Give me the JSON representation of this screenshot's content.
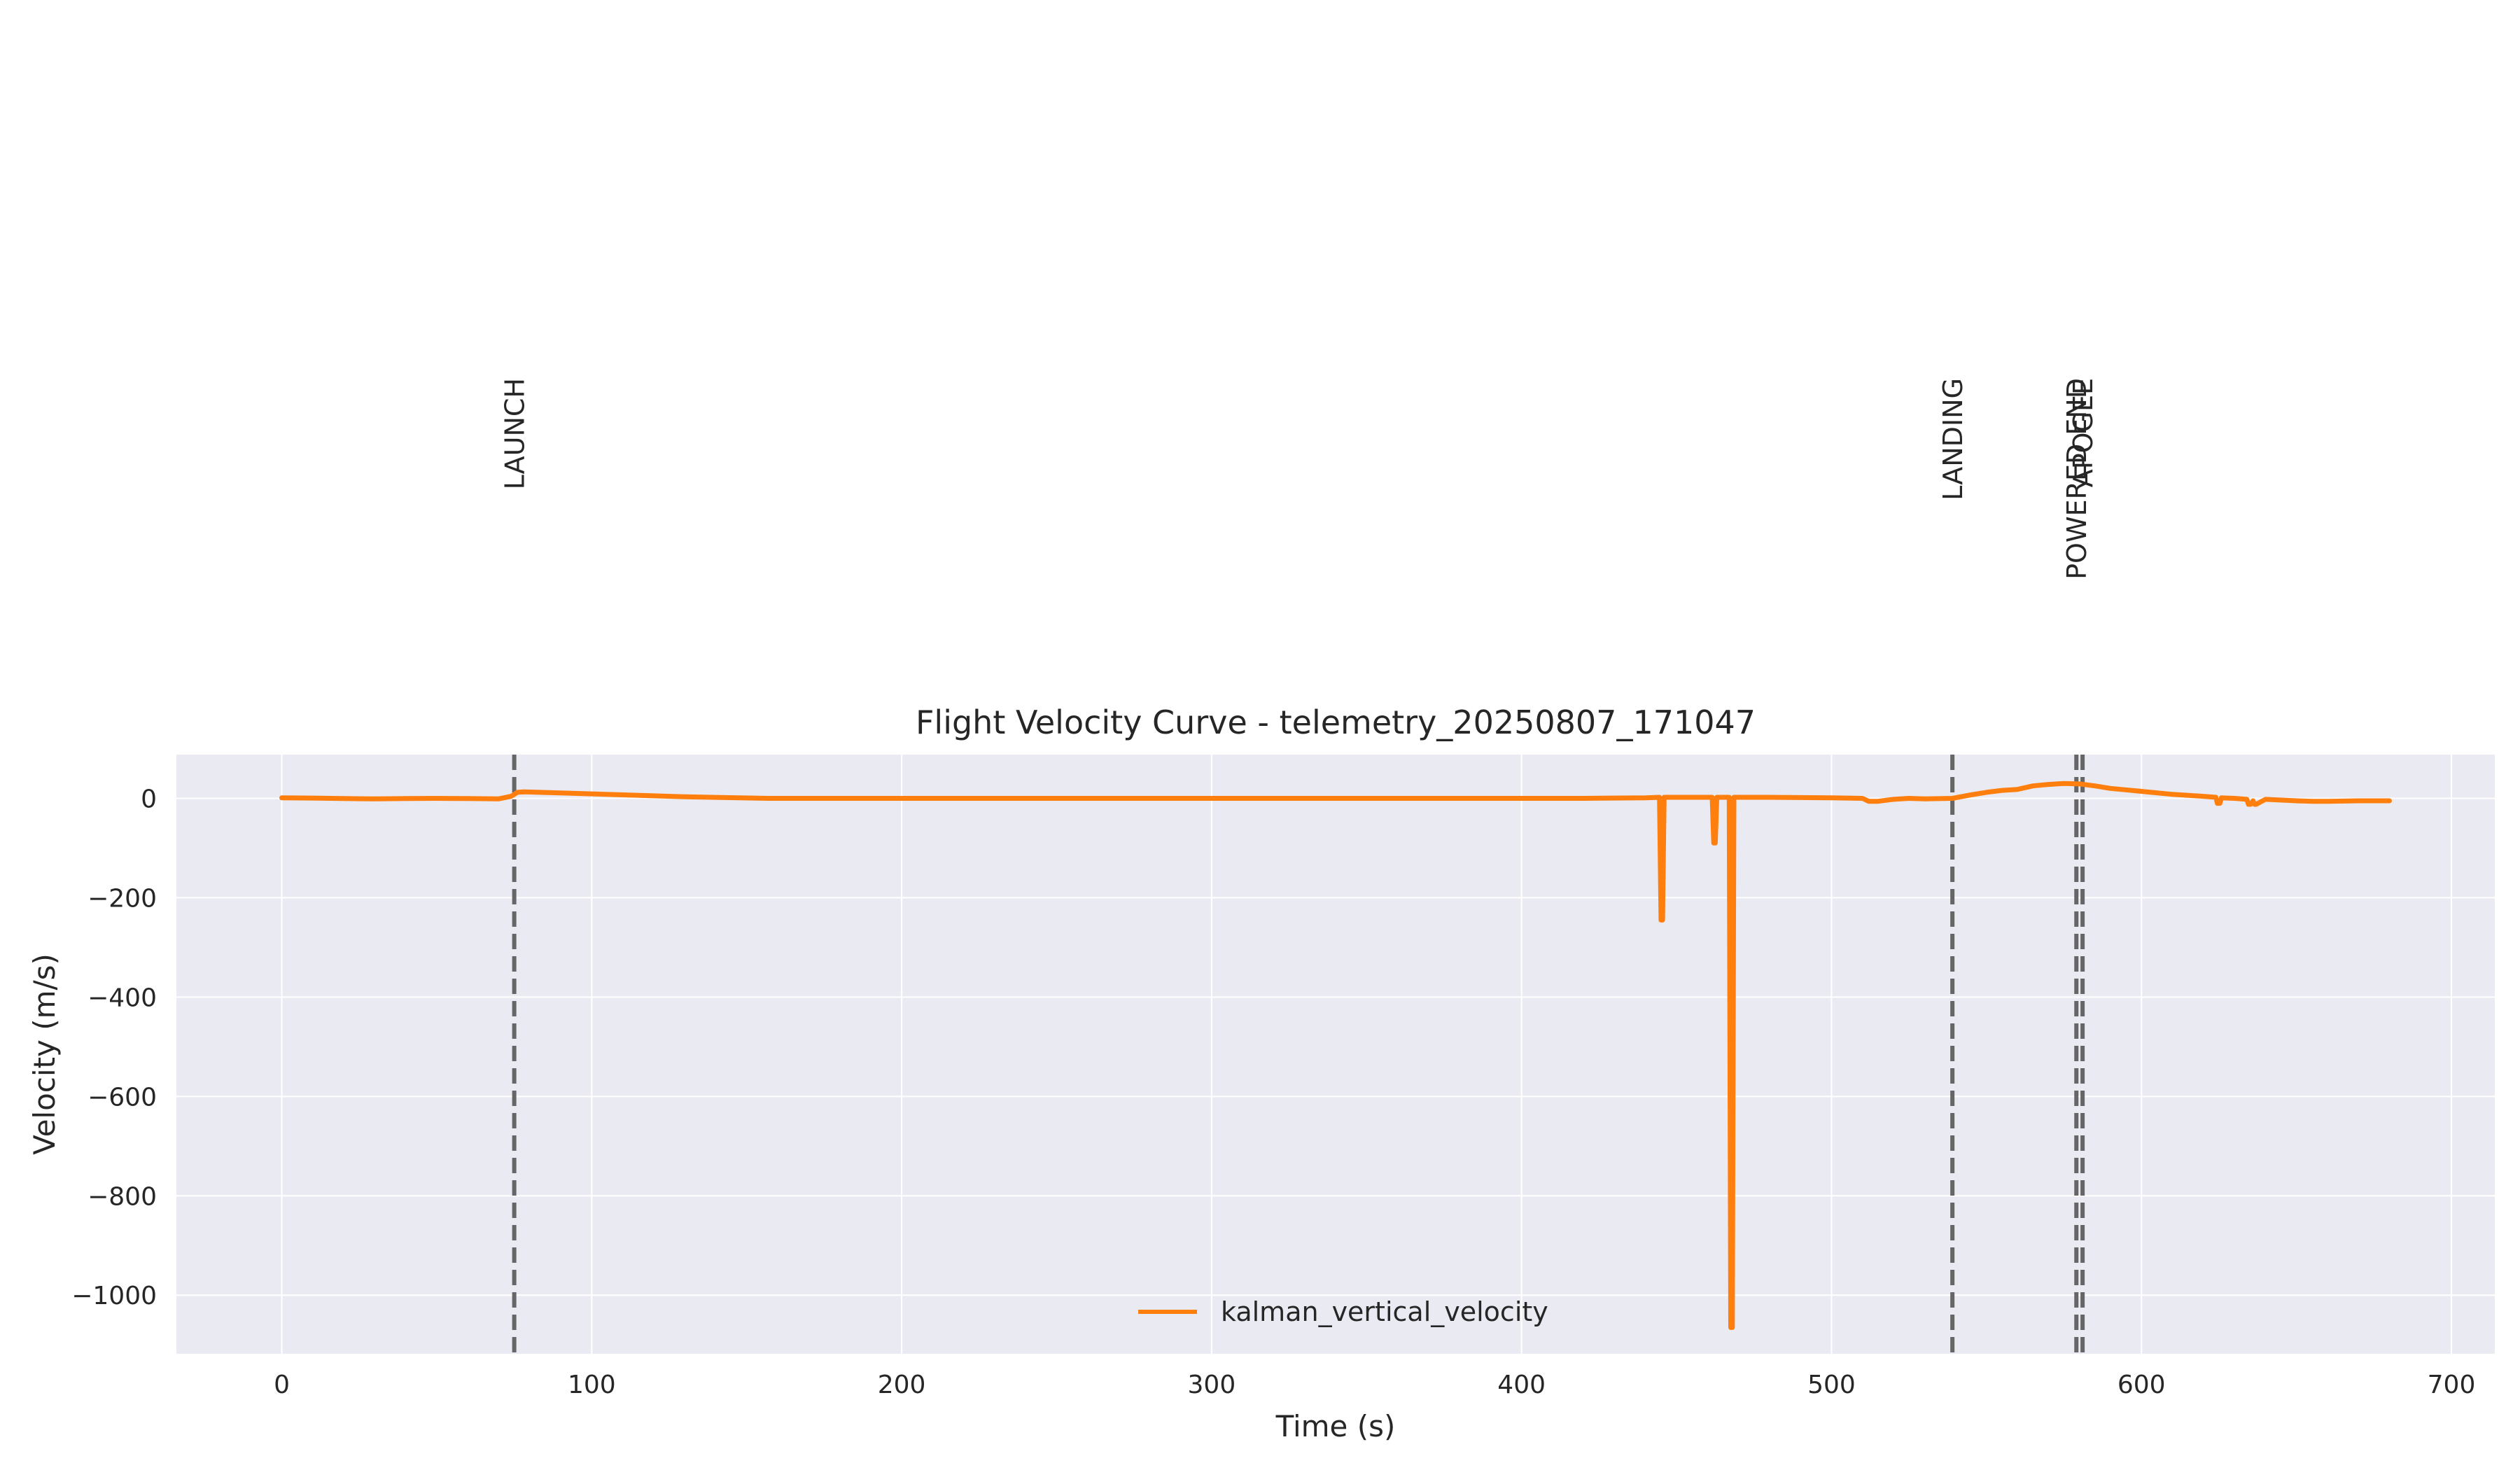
{
  "chart_data": {
    "type": "line",
    "title": "Flight Velocity Curve - telemetry_20250807_171047",
    "xlabel": "Time (s)",
    "ylabel": "Velocity (m/s)",
    "xlim": [
      -34,
      714
    ],
    "ylim": [
      -1118,
      88
    ],
    "x_ticks": [
      0,
      100,
      200,
      300,
      400,
      500,
      600,
      700
    ],
    "y_ticks": [
      0,
      -200,
      -400,
      -600,
      -800,
      -1000
    ],
    "x_tick_labels": [
      "0",
      "100",
      "200",
      "300",
      "400",
      "500",
      "600",
      "700"
    ],
    "y_tick_labels": [
      "0",
      "−200",
      "−400",
      "−600",
      "−800",
      "−1000"
    ],
    "grid": true,
    "legend_position": "lower center",
    "colors": {
      "series": "#ff7f0e",
      "event_line": "#666666",
      "plot_background": "#eaeaf2",
      "grid": "#ffffff"
    },
    "events": [
      {
        "label": "LAUNCH",
        "x": 75
      },
      {
        "label": "LANDING",
        "x": 539
      },
      {
        "label": "POWERED END",
        "x": 579
      },
      {
        "label": "APOGEE",
        "x": 581
      }
    ],
    "series": [
      {
        "name": "kalman_vertical_velocity",
        "x": [
          0,
          10,
          20,
          30,
          40,
          50,
          60,
          70,
          74,
          76,
          78,
          90,
          110,
          130,
          157,
          200,
          300,
          400,
          420,
          440,
          444.5,
          445,
          445.5,
          446,
          450,
          460,
          461.5,
          462,
          462.5,
          463,
          467,
          467.5,
          468,
          468.5,
          469,
          480,
          500,
          510,
          512,
          515,
          520,
          525,
          530,
          539,
          545,
          550,
          555,
          560,
          565,
          570,
          575,
          580,
          585,
          590,
          600,
          610,
          620,
          624,
          624.5,
          625.3,
          625.8,
          630,
          634,
          634.5,
          635.2,
          636,
          636.5,
          637,
          640,
          650,
          655,
          660,
          670,
          680
        ],
        "y": [
          1,
          0.5,
          -0.5,
          -1,
          -0.5,
          0,
          -0.5,
          -1,
          4,
          12,
          13,
          11,
          7,
          3,
          0,
          0,
          0,
          0,
          0,
          1,
          2,
          -245,
          -245,
          2,
          2,
          2,
          2,
          -90,
          -90,
          2,
          2,
          -1065,
          -1065,
          2,
          2,
          2,
          1,
          0,
          -6,
          -6,
          -2,
          0,
          -1,
          0,
          7,
          12,
          16,
          18,
          25,
          28,
          30,
          29,
          25,
          20,
          14,
          8,
          4,
          2,
          -10,
          -10,
          1,
          0,
          -2,
          -12,
          -12,
          -5,
          -12,
          -12,
          -2,
          -5,
          -6,
          -6,
          -5,
          -5
        ]
      }
    ]
  }
}
